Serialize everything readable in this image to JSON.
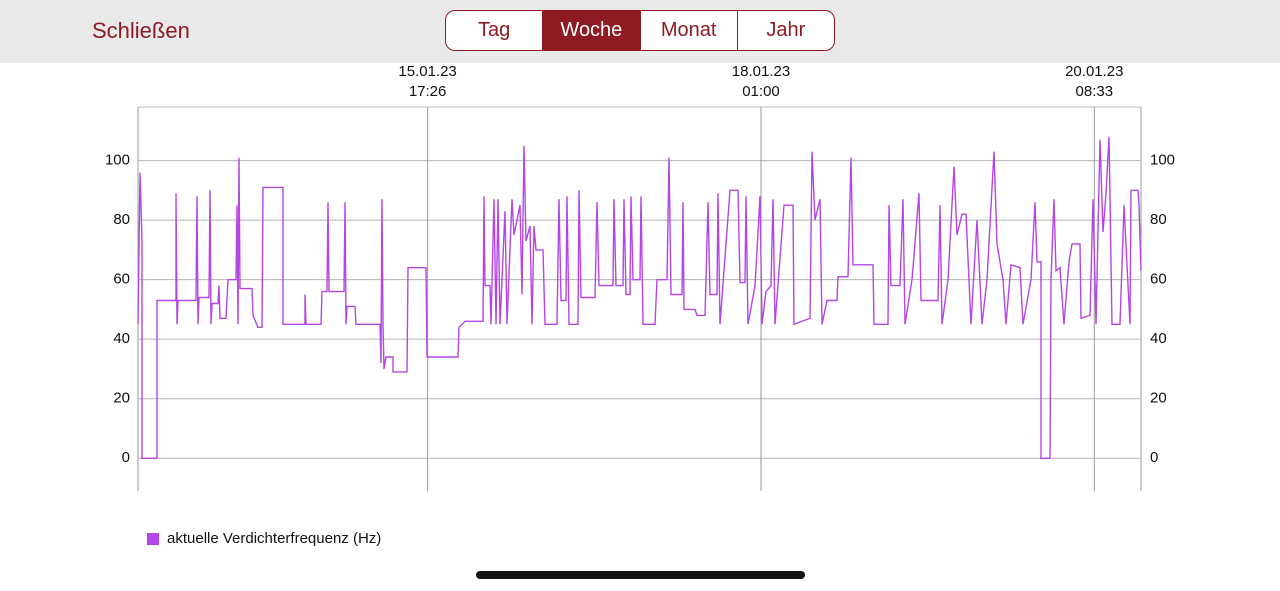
{
  "header": {
    "close": "Schließen",
    "tabs": [
      "Tag",
      "Woche",
      "Monat",
      "Jahr"
    ],
    "selected_tab": 1
  },
  "chart_data": {
    "type": "line",
    "x": [
      "2023-01-13T17:10",
      "2023-01-13T17:30",
      "2023-01-13T17:50",
      "2023-01-13T17:50",
      "2023-01-13T20:20",
      "2023-01-13T20:20",
      "2023-01-13T23:30",
      "2023-01-13T23:30",
      "2023-01-13T23:40",
      "2023-01-13T23:50",
      "2023-01-14T02:50",
      "2023-01-14T03:00",
      "2023-01-14T03:10",
      "2023-01-14T03:20",
      "2023-01-14T05:00",
      "2023-01-14T05:10",
      "2023-01-14T05:20",
      "2023-01-14T05:30",
      "2023-01-14T06:30",
      "2023-01-14T06:40",
      "2023-01-14T06:50",
      "2023-01-14T07:50",
      "2023-01-14T08:10",
      "2023-01-14T09:30",
      "2023-01-14T09:40",
      "2023-01-14T09:50",
      "2023-01-14T10:00",
      "2023-01-14T10:10",
      "2023-01-14T12:10",
      "2023-01-14T12:20",
      "2023-01-14T13:10",
      "2023-01-14T13:50",
      "2023-01-14T14:00",
      "2023-01-14T17:20",
      "2023-01-14T17:20",
      "2023-01-14T21:00",
      "2023-01-14T21:00",
      "2023-01-14T21:10",
      "2023-01-14T23:40",
      "2023-01-14T23:50",
      "2023-01-15T00:40",
      "2023-01-15T00:50",
      "2023-01-15T01:00",
      "2023-01-15T03:30",
      "2023-01-15T03:40",
      "2023-01-15T03:50",
      "2023-01-15T04:00",
      "2023-01-15T05:20",
      "2023-01-15T05:30",
      "2023-01-15T09:30",
      "2023-01-15T09:40",
      "2023-01-15T09:50",
      "2023-01-15T10:00",
      "2023-01-15T10:10",
      "2023-01-15T10:30",
      "2023-01-15T11:40",
      "2023-01-15T11:40",
      "2023-01-15T14:00",
      "2023-01-15T14:10",
      "2023-01-15T17:10",
      "2023-01-15T17:20",
      "2023-01-15T22:30",
      "2023-01-15T22:40",
      "2023-01-15T23:40",
      "2023-01-16T02:40",
      "2023-01-16T02:50",
      "2023-01-16T03:00",
      "2023-01-16T03:50",
      "2023-01-16T04:00",
      "2023-01-16T04:30",
      "2023-01-16T04:50",
      "2023-01-16T05:10",
      "2023-01-16T05:30",
      "2023-01-16T06:20",
      "2023-01-16T06:40",
      "2023-01-16T07:30",
      "2023-01-16T07:50",
      "2023-01-16T08:50",
      "2023-01-16T09:10",
      "2023-01-16T09:30",
      "2023-01-16T09:50",
      "2023-01-16T10:30",
      "2023-01-16T10:50",
      "2023-01-16T11:10",
      "2023-01-16T11:30",
      "2023-01-16T12:40",
      "2023-01-16T13:00",
      "2023-01-16T15:00",
      "2023-01-16T15:20",
      "2023-01-16T15:40",
      "2023-01-16T16:30",
      "2023-01-16T16:40",
      "2023-01-16T17:00",
      "2023-01-16T18:30",
      "2023-01-16T18:40",
      "2023-01-16T19:00",
      "2023-01-16T21:20",
      "2023-01-16T21:40",
      "2023-01-16T22:00",
      "2023-01-17T00:20",
      "2023-01-17T00:30",
      "2023-01-17T00:50",
      "2023-01-17T02:00",
      "2023-01-17T02:10",
      "2023-01-17T02:30",
      "2023-01-17T03:10",
      "2023-01-17T03:20",
      "2023-01-17T03:40",
      "2023-01-17T04:50",
      "2023-01-17T05:00",
      "2023-01-17T05:20",
      "2023-01-17T07:20",
      "2023-01-17T07:40",
      "2023-01-17T09:20",
      "2023-01-17T09:40",
      "2023-01-17T10:00",
      "2023-01-17T11:50",
      "2023-01-17T12:00",
      "2023-01-17T12:10",
      "2023-01-17T14:00",
      "2023-01-17T14:20",
      "2023-01-17T15:40",
      "2023-01-17T15:50",
      "2023-01-17T16:10",
      "2023-01-17T16:30",
      "2023-01-17T17:40",
      "2023-01-17T17:50",
      "2023-01-17T18:10",
      "2023-01-17T19:50",
      "2023-01-17T21:10",
      "2023-01-17T21:30",
      "2023-01-17T22:20",
      "2023-01-17T22:30",
      "2023-01-17T22:50",
      "2023-01-18T00:00",
      "2023-01-18T00:50",
      "2023-01-18T01:10",
      "2023-01-18T01:50",
      "2023-01-18T02:40",
      "2023-01-18T03:00",
      "2023-01-18T03:20",
      "2023-01-18T04:50",
      "2023-01-18T06:20",
      "2023-01-18T06:30",
      "2023-01-18T09:10",
      "2023-01-18T09:30",
      "2023-01-18T10:00",
      "2023-01-18T10:50",
      "2023-01-18T11:10",
      "2023-01-18T12:00",
      "2023-01-18T13:40",
      "2023-01-18T13:50",
      "2023-01-18T15:30",
      "2023-01-18T16:00",
      "2023-01-18T16:20",
      "2023-01-18T19:40",
      "2023-01-18T19:50",
      "2023-01-18T22:10",
      "2023-01-18T22:20",
      "2023-01-18T22:40",
      "2023-01-19T00:10",
      "2023-01-19T00:40",
      "2023-01-19T01:00",
      "2023-01-19T02:10",
      "2023-01-19T03:20",
      "2023-01-19T03:40",
      "2023-01-19T06:30",
      "2023-01-19T06:50",
      "2023-01-19T07:10",
      "2023-01-19T08:10",
      "2023-01-19T09:10",
      "2023-01-19T09:40",
      "2023-01-19T10:30",
      "2023-01-19T11:10",
      "2023-01-19T12:00",
      "2023-01-19T13:00",
      "2023-01-19T13:50",
      "2023-01-19T14:40",
      "2023-01-19T15:50",
      "2023-01-19T16:20",
      "2023-01-19T17:20",
      "2023-01-19T17:50",
      "2023-01-19T18:40",
      "2023-01-19T20:10",
      "2023-01-19T20:40",
      "2023-01-19T22:00",
      "2023-01-19T22:40",
      "2023-01-19T23:00",
      "2023-01-19T23:40",
      "2023-01-19T23:40",
      "2023-01-20T01:10",
      "2023-01-20T01:20",
      "2023-01-20T01:50",
      "2023-01-20T02:10",
      "2023-01-20T02:50",
      "2023-01-20T03:30",
      "2023-01-20T04:20",
      "2023-01-20T04:50",
      "2023-01-20T06:10",
      "2023-01-20T06:20",
      "2023-01-20T07:50",
      "2023-01-20T08:20",
      "2023-01-20T08:50",
      "2023-01-20T09:30",
      "2023-01-20T10:00",
      "2023-01-20T10:30",
      "2023-01-20T11:00",
      "2023-01-20T11:30",
      "2023-01-20T12:50",
      "2023-01-20T13:30",
      "2023-01-20T14:30",
      "2023-01-20T14:40",
      "2023-01-20T15:50",
      "2023-01-20T16:00",
      "2023-01-20T16:20"
    ],
    "series": [
      {
        "name": "aktuelle Verdichterfrequenz (Hz)",
        "color": "#b545e6",
        "values": [
          45,
          96,
          73,
          0,
          0,
          53,
          53,
          89,
          45,
          53,
          53,
          88,
          45,
          54,
          54,
          90,
          45,
          52,
          52,
          58,
          47,
          47,
          60,
          60,
          85,
          45,
          101,
          57,
          57,
          48,
          44,
          44,
          91,
          91,
          45,
          45,
          55,
          45,
          45,
          56,
          56,
          86,
          56,
          56,
          86,
          45,
          51,
          51,
          45,
          45,
          32,
          87,
          45,
          30,
          34,
          34,
          29,
          29,
          64,
          64,
          34,
          34,
          44,
          46,
          46,
          88,
          58,
          58,
          45,
          87,
          45,
          87,
          45,
          83,
          45,
          87,
          75,
          85,
          55,
          105,
          73,
          78,
          45,
          78,
          70,
          70,
          45,
          45,
          87,
          53,
          53,
          88,
          45,
          45,
          90,
          54,
          54,
          86,
          58,
          58,
          87,
          58,
          58,
          87,
          55,
          55,
          88,
          60,
          60,
          88,
          45,
          45,
          60,
          60,
          101,
          55,
          55,
          86,
          50,
          50,
          48,
          48,
          60,
          86,
          55,
          55,
          89,
          45,
          90,
          90,
          59,
          59,
          88,
          45,
          58,
          88,
          45,
          56,
          58,
          87,
          45,
          85,
          85,
          45,
          47,
          103,
          80,
          87,
          45,
          53,
          53,
          61,
          61,
          101,
          65,
          65,
          45,
          45,
          85,
          58,
          58,
          87,
          45,
          60,
          89,
          53,
          53,
          85,
          45,
          60,
          98,
          75,
          82,
          82,
          45,
          80,
          45,
          60,
          103,
          72,
          60,
          45,
          65,
          64,
          45,
          60,
          86,
          66,
          66,
          0,
          0,
          60,
          87,
          63,
          64,
          45,
          66,
          72,
          72,
          47,
          48,
          87,
          45,
          107,
          76,
          89,
          108,
          45,
          45,
          85,
          45,
          90,
          90,
          85,
          63
        ]
      }
    ],
    "xlim": [
      "2023-01-13T17:10",
      "2023-01-20T16:20"
    ],
    "xticks": [
      {
        "value": "2023-01-15T17:26",
        "label": "15.01.23\n17:26"
      },
      {
        "value": "2023-01-18T01:00",
        "label": "18.01.23\n01:00"
      },
      {
        "value": "2023-01-20T08:33",
        "label": "20.01.23\n08:33"
      }
    ],
    "ylim": [
      -11,
      118
    ],
    "yticks": [
      0,
      20,
      40,
      60,
      80,
      100
    ],
    "grid": true,
    "legend": "bottom-left"
  }
}
